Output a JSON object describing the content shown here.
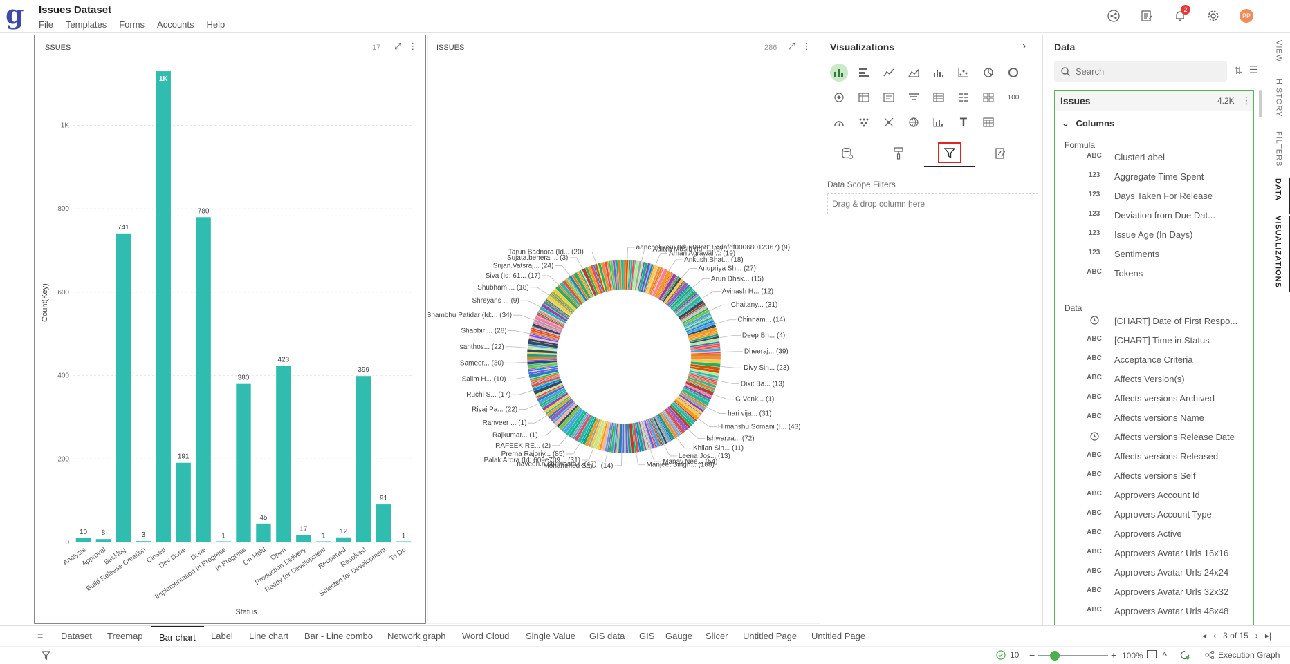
{
  "app": {
    "title": "Issues Dataset",
    "menu": [
      "File",
      "Templates",
      "Forms",
      "Accounts",
      "Help"
    ],
    "notification_count": "2",
    "avatar_initials": "PP"
  },
  "bar_panel": {
    "title": "ISSUES",
    "count": "17"
  },
  "donut_panel": {
    "title": "ISSUES",
    "count": "286"
  },
  "chart_data": [
    {
      "type": "bar",
      "title": "",
      "xlabel": "Status",
      "ylabel": "Count(Key)",
      "ylim": [
        0,
        1150
      ],
      "yticks": [
        "0",
        "200",
        "400",
        "600",
        "800",
        "1K"
      ],
      "grid": true,
      "color": "#31bcb0",
      "categories": [
        "Analysis",
        "Approval",
        "Backlog",
        "Build Release Creation",
        "Closed",
        "Dev Done",
        "Done",
        "Implementation In Progress",
        "In Progress",
        "On-Hold",
        "Open",
        "Production Delivery",
        "Ready for Development",
        "Reopened",
        "Resolved",
        "Selected for Development",
        "To Do"
      ],
      "values": [
        10,
        8,
        741,
        3,
        1130,
        191,
        780,
        1,
        380,
        45,
        423,
        17,
        1,
        12,
        399,
        91,
        1
      ],
      "data_labels": [
        "10",
        "8",
        "741",
        "3",
        "1K",
        "191",
        "780",
        "1",
        "380",
        "45",
        "423",
        "17",
        "1",
        "12",
        "399",
        "91",
        "1"
      ]
    },
    {
      "type": "pie",
      "donut": true,
      "title": "",
      "labels": [
        "aanchal.koul (Id: 609b818edafdf00068012367) (9)",
        "Aditya Masih (Id: ... (8)",
        "Aman Agrawal ... (19)",
        "Ankush.Bhat... (18)",
        "Anupriya Sh... (27)",
        "Arun Dhak... (15)",
        "Avinash H... (12)",
        "Chaitany... (31)",
        "Chinnam... (14)",
        "Deep Bh... (4)",
        "Dheeraj... (39)",
        "Divy Sin... (23)",
        "Dixit Ba... (13)",
        "G Venk... (1)",
        "hari vija... (31)",
        "Himanshu Somani (I... (43)",
        "Ishwar.ra... (72)",
        "Khilan Sin... (11)",
        "Leena Jos... (13)",
        "Manav.Nee... (54)",
        "Manjeet Singh... (108)",
        "Mohammed Say... (14)",
        "naveen.n.shriwasta... (47)",
        "Palak Arora (Id: 609e709... (31)",
        "Prerna Rajoriy... (85)",
        "RAFEEK RE... (2)",
        "Rajkumar... (1)",
        "Ranveer ... (1)",
        "Riyaj Pa... (22)",
        "Ruchi S... (17)",
        "Salim H... (10)",
        "Sameer... (30)",
        "santhos... (22)",
        "Shabbir ... (28)",
        "Shambhu Patidar (Id:... (34)",
        "Shreyans ... (9)",
        "Shubham ... (18)",
        "Siva (Id: 61... (17)",
        "Srijan.Vatsraj... (24)",
        "Sujata.behera ... (3)",
        "Tarun Badnora (Id... (20)"
      ],
      "values": [
        9,
        8,
        19,
        18,
        27,
        15,
        12,
        31,
        14,
        4,
        39,
        23,
        13,
        1,
        31,
        43,
        72,
        11,
        13,
        54,
        108,
        14,
        47,
        31,
        85,
        2,
        1,
        1,
        22,
        17,
        10,
        30,
        22,
        28,
        34,
        9,
        18,
        17,
        24,
        3,
        20
      ]
    }
  ],
  "viz_panel": {
    "title": "Visualizations",
    "icons": [
      "bar-chart",
      "horizontal-bar",
      "line-chart",
      "area-chart",
      "column-chart",
      "scatter-chart",
      "pie-chart",
      "donut-chart",
      "radar-chart",
      "pivot-table",
      "card",
      "funnel",
      "table",
      "kpi-list",
      "grid",
      "single-value",
      "gauge",
      "heatmap",
      "network",
      "globe",
      "bar-line-combo",
      "text",
      "calendar"
    ],
    "single_value_label": "100",
    "text_label": "T",
    "scope_label": "Data Scope Filters",
    "drop_hint": "Drag & drop column here"
  },
  "data_panel": {
    "title": "Data",
    "search_placeholder": "Search",
    "dataset_name": "Issues",
    "dataset_count": "4.2K",
    "columns_label": "Columns",
    "formula_label": "Formula",
    "data_label": "Data",
    "formula_fields": [
      {
        "type": "ABC",
        "name": "ClusterLabel"
      },
      {
        "type": "123",
        "name": "Aggregate Time Spent"
      },
      {
        "type": "123",
        "name": "Days Taken For Release"
      },
      {
        "type": "123",
        "name": "Deviation from Due Dat..."
      },
      {
        "type": "123",
        "name": "Issue Age (In Days)"
      },
      {
        "type": "123",
        "name": "Sentiments"
      },
      {
        "type": "ABC",
        "name": "Tokens"
      }
    ],
    "data_fields": [
      {
        "type": "clock",
        "name": "[CHART] Date of First Respo..."
      },
      {
        "type": "ABC",
        "name": "[CHART] Time in Status"
      },
      {
        "type": "ABC",
        "name": "Acceptance Criteria"
      },
      {
        "type": "ABC",
        "name": "Affects Version(s)"
      },
      {
        "type": "ABC",
        "name": "Affects versions Archived"
      },
      {
        "type": "ABC",
        "name": "Affects versions Name"
      },
      {
        "type": "clock",
        "name": "Affects versions Release Date"
      },
      {
        "type": "ABC",
        "name": "Affects versions Released"
      },
      {
        "type": "ABC",
        "name": "Affects versions Self"
      },
      {
        "type": "ABC",
        "name": "Approvers Account Id"
      },
      {
        "type": "ABC",
        "name": "Approvers Account Type"
      },
      {
        "type": "ABC",
        "name": "Approvers Active"
      },
      {
        "type": "ABC",
        "name": "Approvers Avatar Urls 16x16"
      },
      {
        "type": "ABC",
        "name": "Approvers Avatar Urls 24x24"
      },
      {
        "type": "ABC",
        "name": "Approvers Avatar Urls 32x32"
      },
      {
        "type": "ABC",
        "name": "Approvers Avatar Urls 48x48"
      }
    ]
  },
  "side_tabs": [
    "VIEW",
    "HISTORY",
    "FILTERS",
    "DATA",
    "VISUALIZATIONS"
  ],
  "bottom_tabs": [
    "Dataset",
    "Treemap",
    "Bar chart",
    "Label",
    "Line chart",
    "Bar - Line combo",
    "Network graph",
    "Word Cloud",
    "Single Value",
    "GIS data",
    "GIS",
    "Gauge",
    "Slicer",
    "Untitled Page",
    "Untitled Page"
  ],
  "active_bottom_tab": "Bar chart",
  "pagination": "3 of 15",
  "status": {
    "count": "10",
    "zoom": "100%",
    "exec_label": "Execution Graph"
  },
  "colors": {
    "accent": "#31bcb0",
    "selected_green": "#58b458",
    "highlight_red": "#e02424"
  }
}
